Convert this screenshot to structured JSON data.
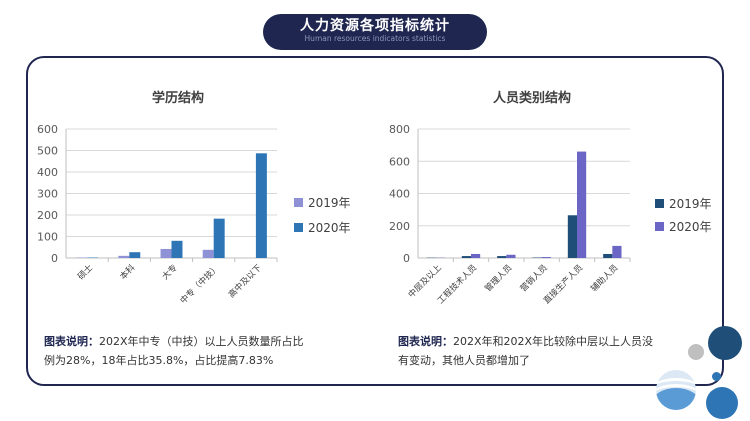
{
  "header": {
    "title": "人力资源各项指标统计",
    "subtitle": "Human resources indicators statistics"
  },
  "chart_data": [
    {
      "type": "bar",
      "title": "学历结构",
      "categories": [
        "硕士",
        "本科",
        "大专",
        "中专（中技）",
        "高中及以下"
      ],
      "series": [
        {
          "name": "2019年",
          "values": [
            2,
            10,
            42,
            38,
            0
          ],
          "color": "#8e91d6"
        },
        {
          "name": "2020年",
          "values": [
            2,
            27,
            80,
            183,
            487
          ],
          "color": "#2e75b6"
        }
      ],
      "ylim": [
        0,
        600
      ],
      "yticks": [
        0,
        100,
        200,
        300,
        400,
        500,
        600
      ],
      "grid": true,
      "legend": "right"
    },
    {
      "type": "bar",
      "title": "人员类别结构",
      "categories": [
        "中层及以上",
        "工程技术人员",
        "管理人员",
        "营销人员",
        "直接生产人员",
        "辅助人员"
      ],
      "series": [
        {
          "name": "2019年",
          "values": [
            2,
            12,
            12,
            3,
            265,
            25
          ],
          "color": "#1f4e79"
        },
        {
          "name": "2020年",
          "values": [
            2,
            25,
            20,
            6,
            660,
            75
          ],
          "color": "#6b66c6"
        }
      ],
      "ylim": [
        0,
        800
      ],
      "yticks": [
        0,
        200,
        400,
        600,
        800
      ],
      "grid": true,
      "legend": "right"
    }
  ],
  "notes": [
    {
      "label": "图表说明：",
      "line1": "202X年中专（中技）以上人员数量所占比",
      "line2": "例为28%，18年占比35.8%，占比提高7.83%"
    },
    {
      "label": "图表说明：",
      "line1": "202X年和202X年比较除中层以上人员没",
      "line2": "有变动，其他人员都增加了"
    }
  ]
}
